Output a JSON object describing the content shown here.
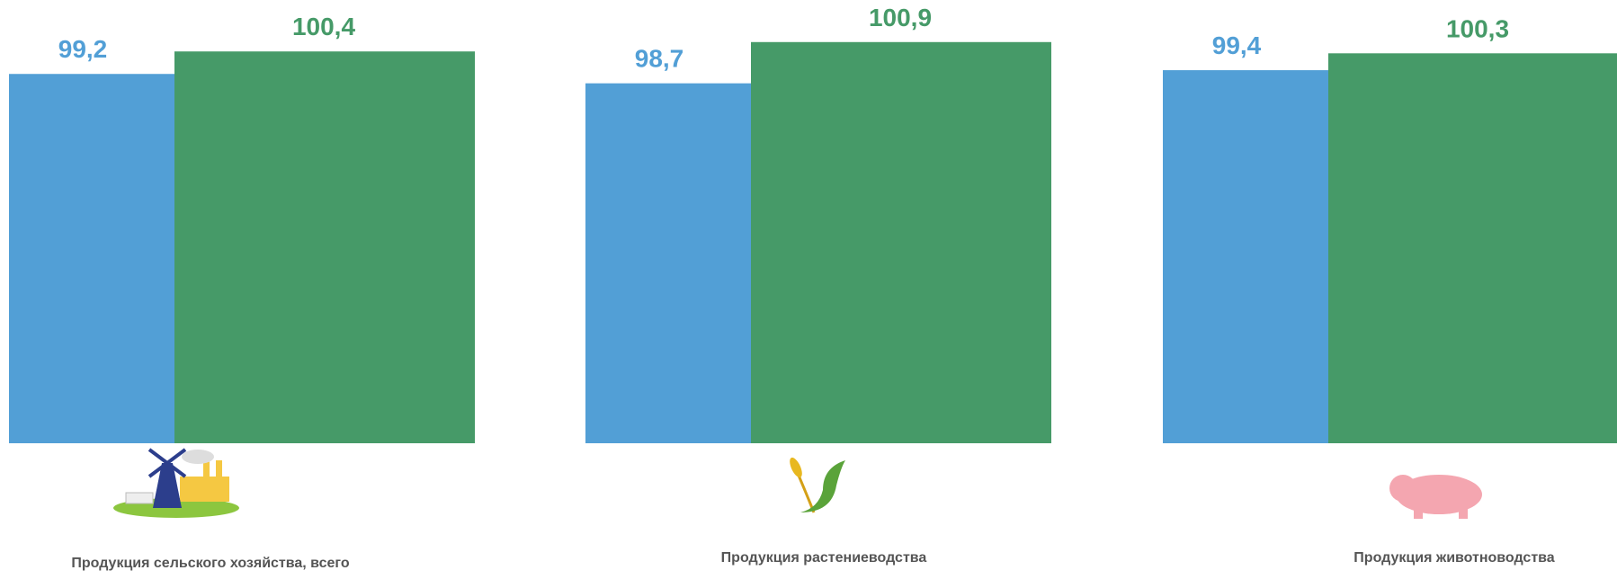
{
  "chart_data": {
    "type": "bar",
    "categories": [
      "Продукция сельского хозяйства, всего",
      "Продукция растениеводства",
      "Продукция животноводства"
    ],
    "series": [
      {
        "color": "#529fd6",
        "values": [
          99.2,
          98.7,
          99.4
        ],
        "value_labels": [
          "99,2",
          "98,7",
          "99,4"
        ]
      },
      {
        "color": "#469a68",
        "values": [
          100.4,
          100.9,
          100.3
        ],
        "value_labels": [
          "100,4",
          "100,9",
          "100,3"
        ]
      }
    ],
    "ylim": [
      79.5,
      103
    ]
  }
}
